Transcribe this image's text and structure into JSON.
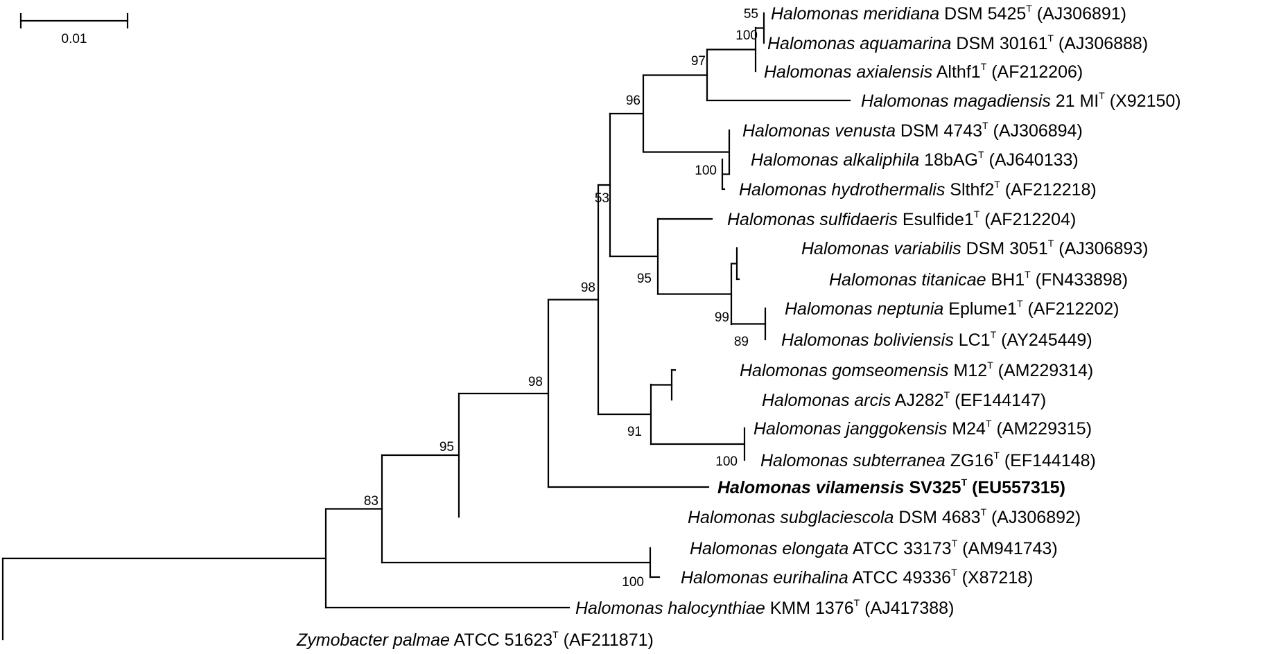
{
  "scale_bar": {
    "label": "0.01"
  },
  "leaves": [
    {
      "id": "meridiana",
      "genus": "Halomonas",
      "species": "meridiana",
      "strain": "DSM 5425",
      "type": "T",
      "accession": "(AJ306891)"
    },
    {
      "id": "aquamarina",
      "genus": "Halomonas",
      "species": "aquamarina",
      "strain": "DSM 30161",
      "type": "T",
      "accession": "(AJ306888)"
    },
    {
      "id": "axialensis",
      "genus": "Halomonas",
      "species": "axialensis",
      "strain": "Althf1",
      "type": "T",
      "accession": "(AF212206)"
    },
    {
      "id": "magadiensis",
      "genus": "Halomonas",
      "species": "magadiensis",
      "strain": "21 MI",
      "type": "T",
      "accession": "(X92150)"
    },
    {
      "id": "venusta",
      "genus": "Halomonas",
      "species": "venusta",
      "strain": "DSM 4743",
      "type": "T",
      "accession": "(AJ306894)"
    },
    {
      "id": "alkaliphila",
      "genus": "Halomonas",
      "species": "alkaliphila",
      "strain": "18bAG",
      "type": "T",
      "accession": "(AJ640133)"
    },
    {
      "id": "hydrothermalis",
      "genus": "Halomonas",
      "species": "hydrothermalis",
      "strain": "Slthf2",
      "type": "T",
      "accession": "(AF212218)"
    },
    {
      "id": "sulfidaeris",
      "genus": "Halomonas",
      "species": "sulfidaeris",
      "strain": "Esulfide1",
      "type": "T",
      "accession": "(AF212204)"
    },
    {
      "id": "variabilis",
      "genus": "Halomonas",
      "species": "variabilis",
      "strain": "DSM 3051",
      "type": "T",
      "accession": "(AJ306893)"
    },
    {
      "id": "titanicae",
      "genus": "Halomonas",
      "species": "titanicae",
      "strain": "BH1",
      "type": "T",
      "accession": "(FN433898)"
    },
    {
      "id": "neptunia",
      "genus": "Halomonas",
      "species": "neptunia",
      "strain": "Eplume1",
      "type": "T",
      "accession": "(AF212202)"
    },
    {
      "id": "boliviensis",
      "genus": "Halomonas",
      "species": "boliviensis",
      "strain": "LC1",
      "type": "T",
      "accession": "(AY245449)"
    },
    {
      "id": "gomseomensis",
      "genus": "Halomonas",
      "species": "gomseomensis",
      "strain": "M12",
      "type": "T",
      "accession": "(AM229314)"
    },
    {
      "id": "arcis",
      "genus": "Halomonas",
      "species": "arcis",
      "strain": "AJ282",
      "type": "T",
      "accession": "(EF144147)"
    },
    {
      "id": "janggokensis",
      "genus": "Halomonas",
      "species": "janggokensis",
      "strain": "M24",
      "type": "T",
      "accession": "(AM229315)"
    },
    {
      "id": "subterranea",
      "genus": "Halomonas",
      "species": "subterranea",
      "strain": "ZG16",
      "type": "T",
      "accession": "(EF144148)"
    },
    {
      "id": "vilamensis",
      "genus": "Halomonas",
      "species": "vilamensis",
      "strain": "SV325",
      "type": "T",
      "accession": "(EU557315)",
      "bold": true
    },
    {
      "id": "subglaciescola",
      "genus": "Halomonas",
      "species": "subglaciescola",
      "strain": "DSM 4683",
      "type": "T",
      "accession": "(AJ306892)"
    },
    {
      "id": "elongata",
      "genus": "Halomonas",
      "species": "elongata",
      "strain": "ATCC 33173",
      "type": "T",
      "accession": "(AM941743)"
    },
    {
      "id": "eurihalina",
      "genus": "Halomonas",
      "species": "eurihalina",
      "strain": "ATCC 49336",
      "type": "T",
      "accession": "(X87218)"
    },
    {
      "id": "halocynthiae",
      "genus": "Halomonas",
      "species": "halocynthiae",
      "strain": "KMM 1376",
      "type": "T",
      "accession": "(AJ417388)"
    },
    {
      "id": "zymobacter",
      "genus": "Zymobacter",
      "species": "palmae",
      "strain": "ATCC 51623",
      "type": "T",
      "accession": "(AF211871)"
    }
  ],
  "bootstrap_values": [
    "55",
    "100",
    "97",
    "96",
    "100",
    "53",
    "95",
    "99",
    "89",
    "98",
    "98",
    "91",
    "100",
    "95",
    "83",
    "100"
  ]
}
